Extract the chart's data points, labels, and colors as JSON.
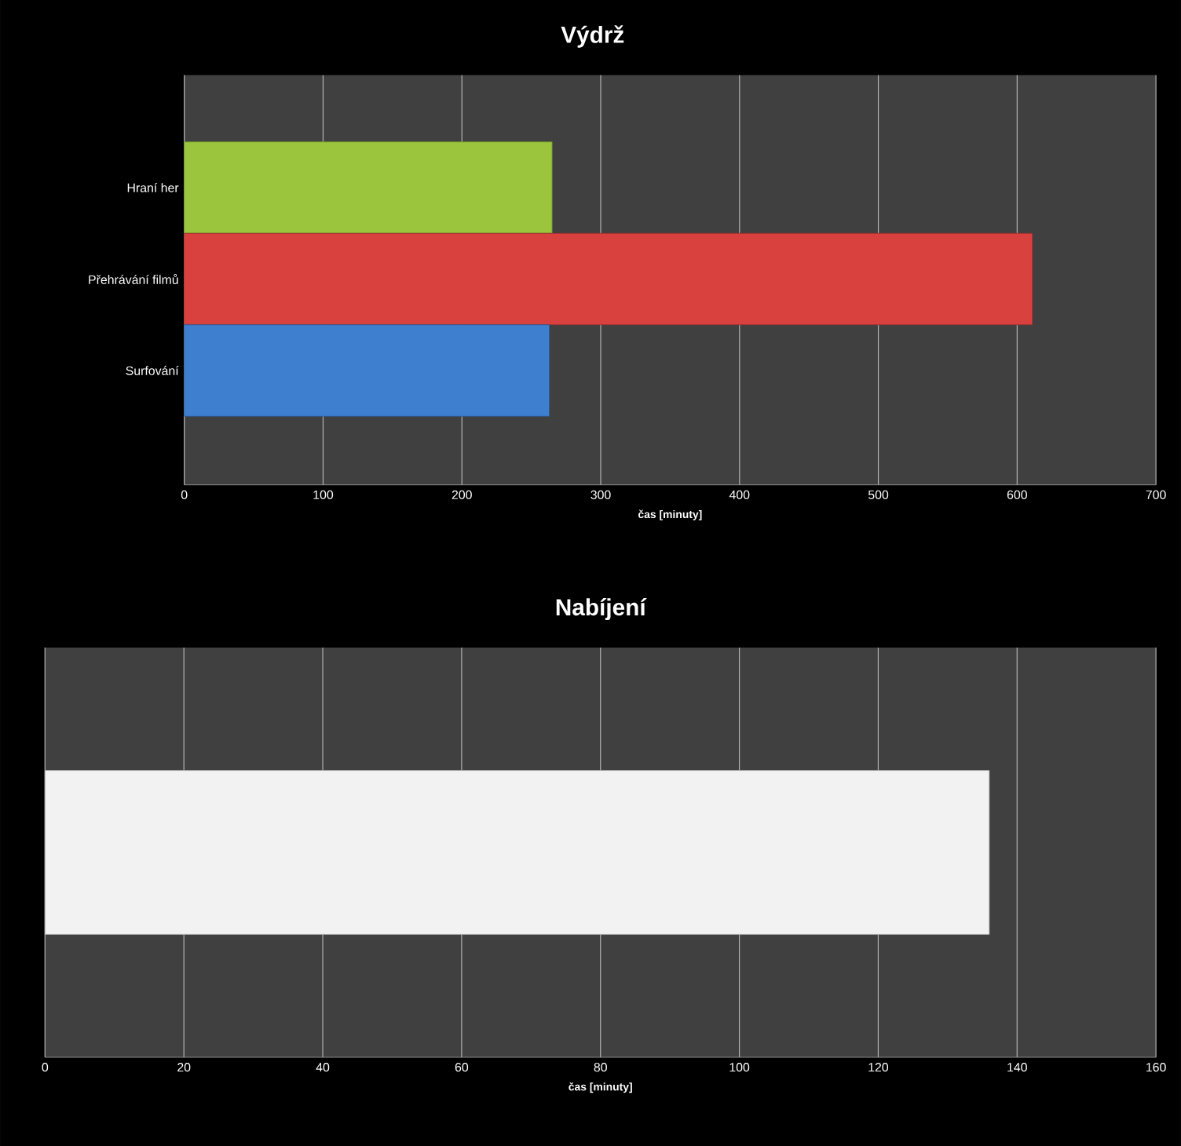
{
  "chart_data": [
    {
      "type": "bar",
      "orientation": "horizontal",
      "title": "Výdrž",
      "xlabel": "čas [minuty]",
      "categories": [
        "Hraní her",
        "Přehrávání filmů",
        "Surfování"
      ],
      "values": [
        265,
        611,
        263
      ],
      "colors": [
        "#9bc53d",
        "#d9413f",
        "#3f7fd0"
      ],
      "xlim": [
        0,
        700
      ],
      "xticks": [
        0,
        100,
        200,
        300,
        400,
        500,
        600,
        700
      ],
      "grid": "x"
    },
    {
      "type": "bar",
      "orientation": "horizontal",
      "title": "Nabíjení",
      "xlabel": "čas [minuty]",
      "categories": [
        null
      ],
      "values": [
        136
      ],
      "colors": [
        "#f2f2f2"
      ],
      "xlim": [
        0,
        160
      ],
      "xticks": [
        0,
        20,
        40,
        60,
        80,
        100,
        120,
        140,
        160
      ],
      "grid": "x"
    }
  ]
}
